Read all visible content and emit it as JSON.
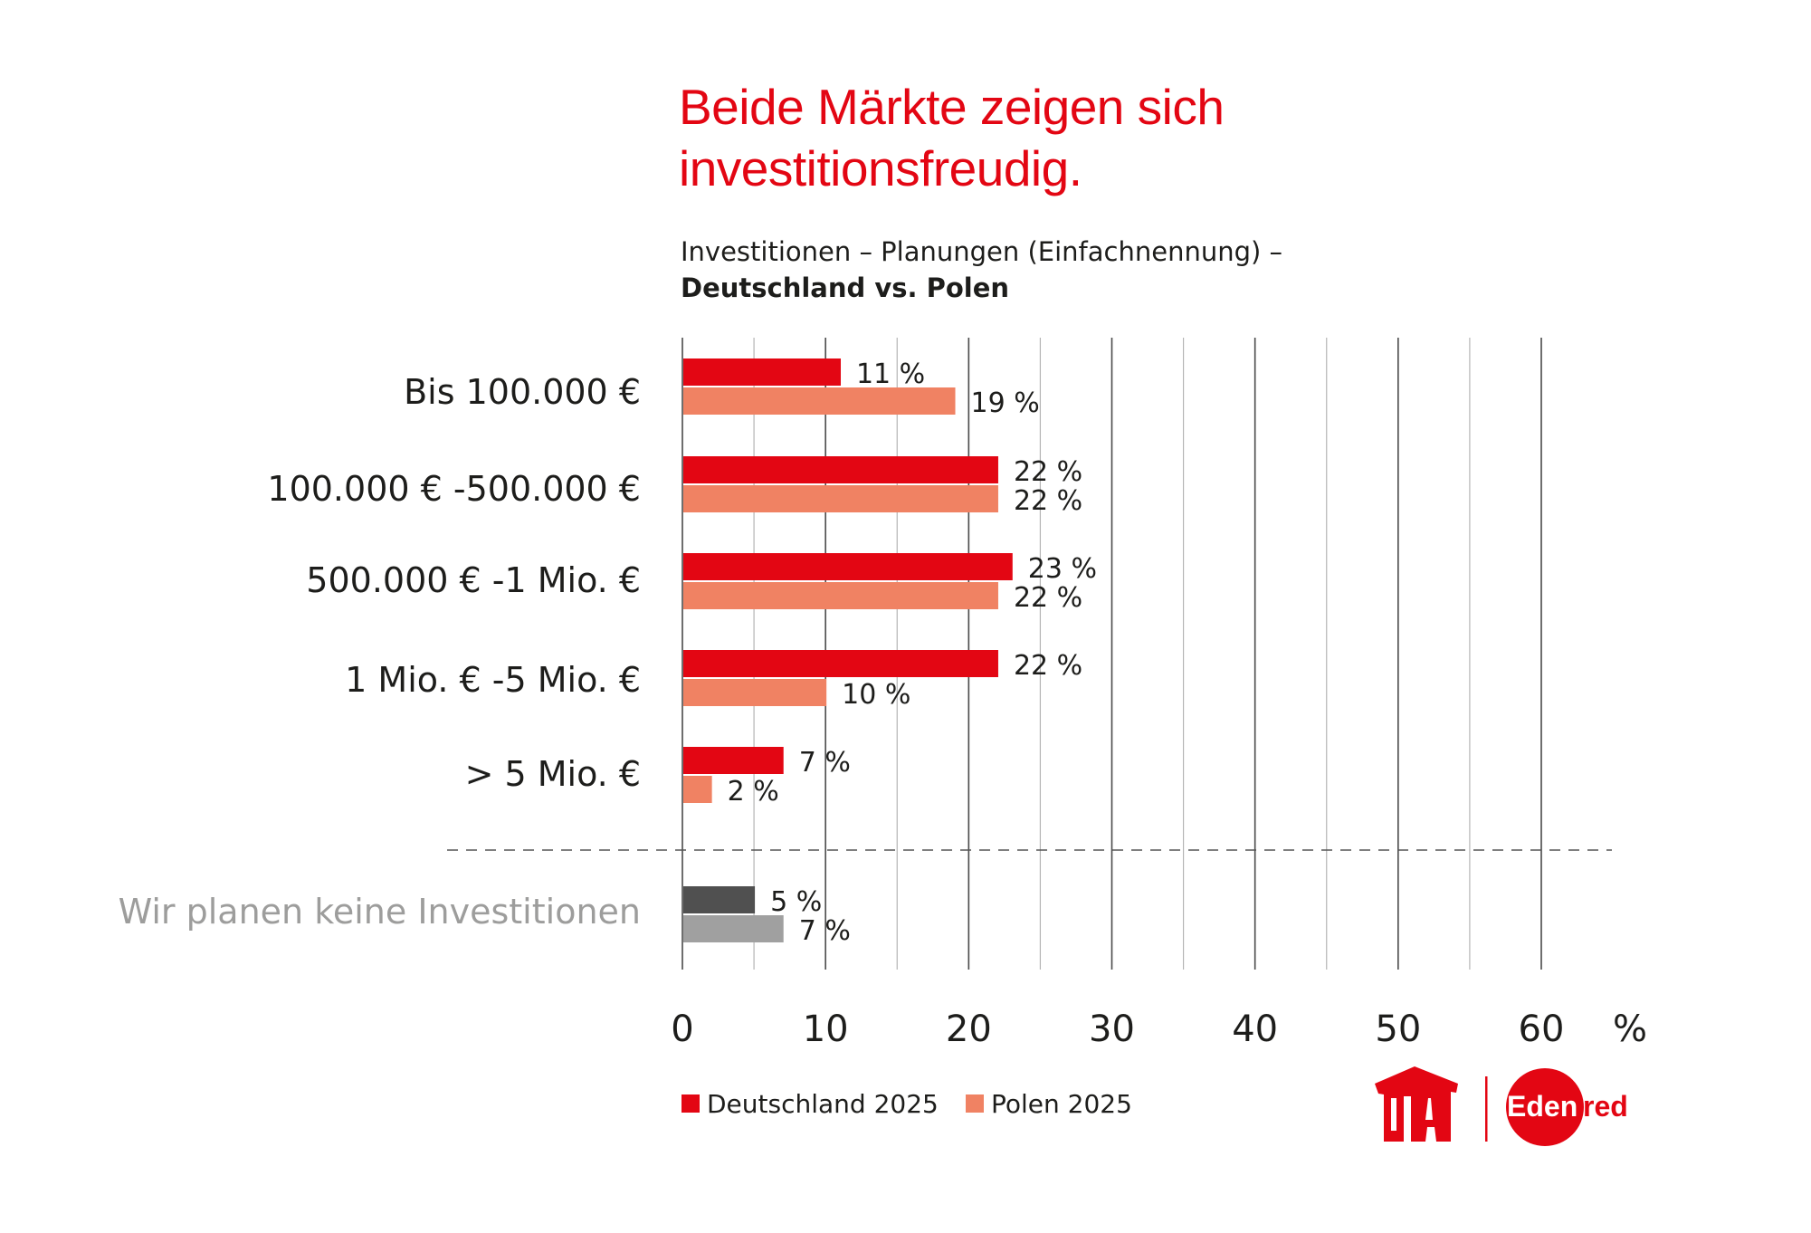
{
  "title": [
    "Beide Märkte zeigen sich",
    "investitionsfreudig."
  ],
  "subtitle": {
    "line1": "Investitionen – Planungen (Einfachnennung) –",
    "line2": "Deutschland vs. Polen"
  },
  "colors": {
    "deutschland": "#e30613",
    "polen": "#f08263",
    "keine_de": "#505050",
    "keine_pl": "#a0a0a0",
    "title": "#e30613"
  },
  "chart_data": {
    "type": "bar",
    "orientation": "horizontal",
    "categories": [
      "Bis 100.000 €",
      "100.000 € -500.000 €",
      "500.000 € -1 Mio. €",
      "1 Mio. € -5 Mio. €",
      "> 5 Mio. €",
      "Wir planen keine Investitionen"
    ],
    "series": [
      {
        "name": "Deutschland 2025",
        "values": [
          11,
          22,
          23,
          22,
          7,
          5
        ]
      },
      {
        "name": "Polen 2025",
        "values": [
          19,
          22,
          22,
          10,
          2,
          7
        ]
      }
    ],
    "value_labels": [
      [
        "11 %",
        "22 %",
        "23 %",
        "22 %",
        "7 %",
        "5 %"
      ],
      [
        "19 %",
        "22 %",
        "22 %",
        "10 %",
        "2 %",
        "7 %"
      ]
    ],
    "xlim": [
      0,
      60
    ],
    "xticks": [
      "0",
      "10",
      "20",
      "30",
      "40",
      "50",
      "60"
    ],
    "xunit": "%",
    "grid": true,
    "legend": "bottom-left"
  },
  "logos": {
    "uta": "UTA",
    "edenred": "Edenred"
  }
}
